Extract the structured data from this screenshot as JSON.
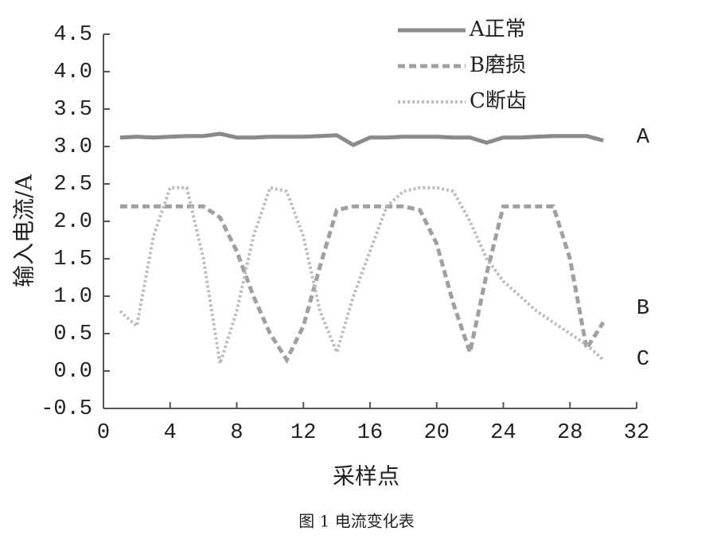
{
  "chart_data": {
    "type": "line",
    "caption": "图 1 电流变化表",
    "x_label": "采样点",
    "y_label": "输入电流/A",
    "x": [
      1,
      2,
      3,
      4,
      5,
      6,
      7,
      8,
      9,
      10,
      11,
      12,
      13,
      14,
      15,
      16,
      17,
      18,
      19,
      20,
      21,
      22,
      23,
      24,
      25,
      26,
      27,
      28,
      29,
      30
    ],
    "series": [
      {
        "name": "A正常",
        "color": "#8a8a8a",
        "style": "solid",
        "values": [
          3.12,
          3.13,
          3.12,
          3.13,
          3.14,
          3.14,
          3.17,
          3.12,
          3.12,
          3.13,
          3.13,
          3.13,
          3.14,
          3.15,
          3.02,
          3.12,
          3.12,
          3.13,
          3.13,
          3.13,
          3.12,
          3.12,
          3.05,
          3.12,
          3.12,
          3.13,
          3.14,
          3.14,
          3.14,
          3.08
        ]
      },
      {
        "name": "B磨损",
        "color": "#a0a0a0",
        "style": "dashed",
        "values": [
          2.2,
          2.2,
          2.2,
          2.2,
          2.2,
          2.2,
          2.05,
          1.6,
          1.0,
          0.5,
          0.15,
          0.6,
          1.4,
          2.15,
          2.2,
          2.2,
          2.2,
          2.2,
          2.15,
          1.7,
          0.9,
          0.25,
          1.3,
          2.2,
          2.2,
          2.2,
          2.2,
          1.5,
          0.3,
          0.65
        ]
      },
      {
        "name": "C断齿",
        "color": "#bdbdbd",
        "style": "dotted",
        "values": [
          0.8,
          0.6,
          1.8,
          2.45,
          2.45,
          1.5,
          0.1,
          0.8,
          1.8,
          2.45,
          2.4,
          1.8,
          0.8,
          0.25,
          1.0,
          1.6,
          2.2,
          2.4,
          2.45,
          2.45,
          2.4,
          2.0,
          1.5,
          1.2,
          1.0,
          0.8,
          0.65,
          0.5,
          0.35,
          0.15
        ]
      }
    ],
    "annotations": [
      "A",
      "B",
      "C"
    ],
    "xlim": [
      0,
      32
    ],
    "xticks": [
      0,
      4,
      8,
      12,
      16,
      20,
      24,
      28,
      32
    ],
    "ylim": [
      -0.5,
      4.5
    ],
    "yticks": [
      -0.5,
      {
        "value": 0,
        "label": "0.0"
      },
      0.5,
      {
        "value": 1,
        "label": "1.0"
      },
      1.5,
      {
        "value": 2,
        "label": "2.0"
      },
      2.5,
      {
        "value": 3,
        "label": "3.0"
      },
      3.5,
      {
        "value": 4,
        "label": "4.0"
      },
      4.5
    ]
  }
}
